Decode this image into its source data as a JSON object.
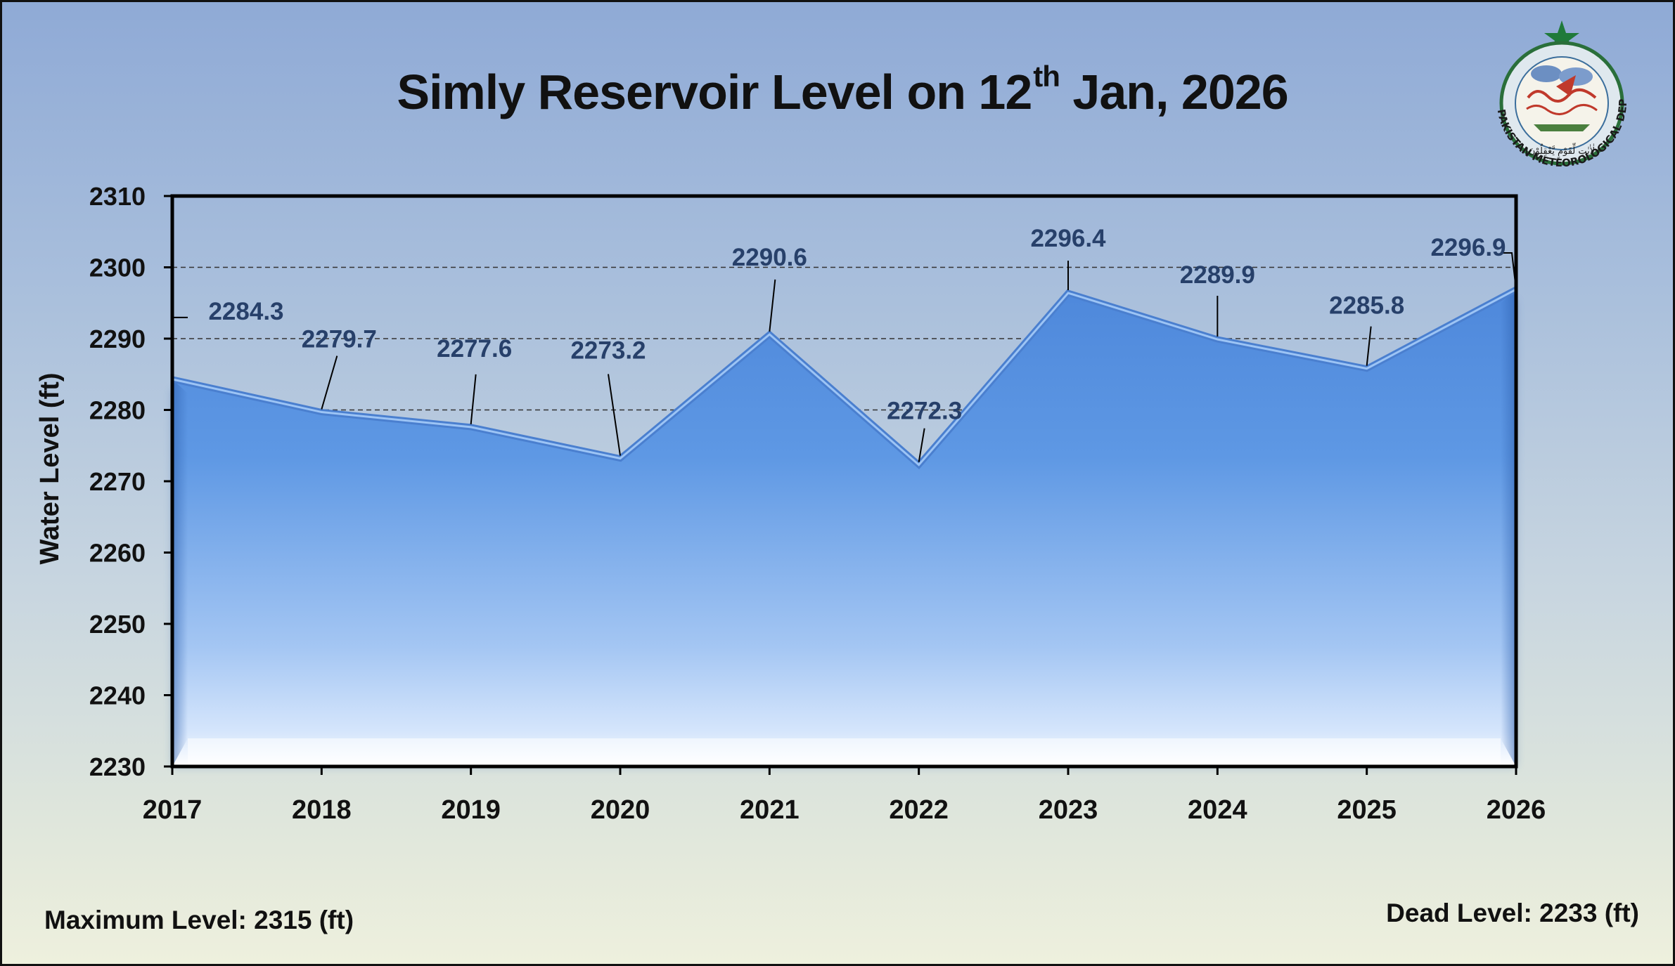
{
  "title": {
    "main": "Simly Reservoir Level on 12",
    "sup": "th",
    "rest": " Jan, 2026"
  },
  "footer": {
    "max_level": "Maximum Level: 2315 (ft)",
    "dead_level": "Dead Level: 2233 (ft)"
  },
  "logo": {
    "text": "PAKISTAN METEOROLOGICAL DEPARTMENT",
    "motto": "لٰاٰيٰتٍ لِّقَوْمٍ يَّعْقِلُوْنَ"
  },
  "colors": {
    "area_top": "#5b94e0",
    "area_bottom": "#e4efff",
    "label": "#27406a",
    "line": "#7fb0ee"
  },
  "chart_data": {
    "type": "area",
    "x": [
      "2017",
      "2018",
      "2019",
      "2020",
      "2021",
      "2022",
      "2023",
      "2024",
      "2025",
      "2026"
    ],
    "series": [
      {
        "values": [
          2284.3,
          2279.7,
          2277.6,
          2273.2,
          2290.6,
          2272.3,
          2296.4,
          2289.9,
          2285.8,
          2296.9
        ]
      }
    ],
    "data_labels": [
      "2284.3",
      "2279.7",
      "2277.6",
      "2273.2",
      "2290.6",
      "2272.3",
      "2296.4",
      "2289.9",
      "2285.8",
      "2296.9"
    ],
    "ylabel": "Water Level (ft)",
    "xlabel": "",
    "ylim": [
      2230,
      2310
    ],
    "yticks": [
      2230,
      2240,
      2250,
      2260,
      2270,
      2280,
      2290,
      2300,
      2310
    ],
    "gridlines": [
      2280,
      2290,
      2300
    ],
    "grid": "dashed horizontal"
  }
}
